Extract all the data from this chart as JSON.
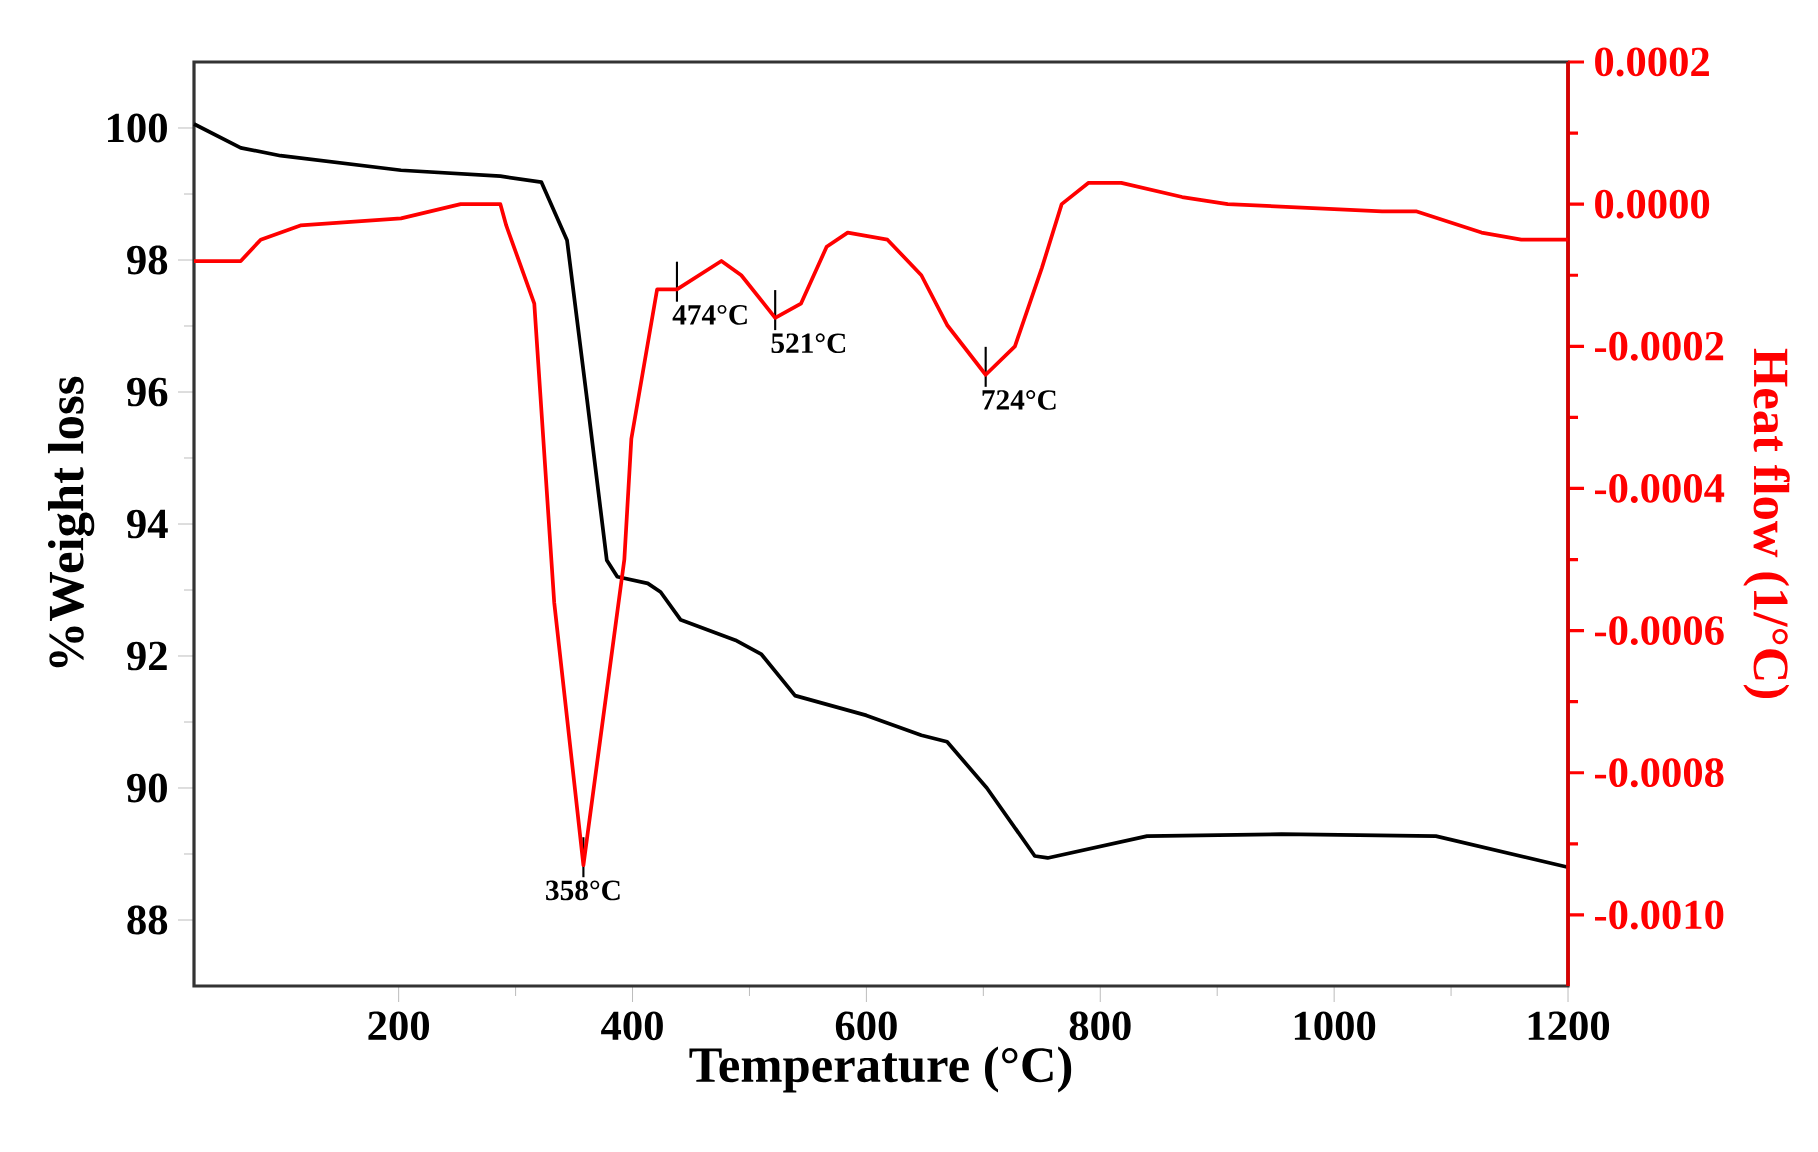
{
  "chart_data": {
    "type": "line",
    "xlabel": "Temperature (°C)",
    "ylabel": "%Weight loss",
    "y2label": "Heat flow (1/°C)",
    "xlim": [
      25,
      1200
    ],
    "xticks": [
      200,
      400,
      600,
      800,
      1000,
      1200
    ],
    "ylim": [
      87,
      101
    ],
    "yticks": [
      88,
      90,
      92,
      94,
      96,
      98,
      100
    ],
    "y2lim": [
      -0.0011,
      0.0002
    ],
    "y2ticks": [
      {
        "value": -0.001,
        "label": "-0.0010"
      },
      {
        "value": -0.0008,
        "label": "-0.0008"
      },
      {
        "value": -0.0006,
        "label": "-0.0006"
      },
      {
        "value": -0.0004,
        "label": "-0.0004"
      },
      {
        "value": -0.0002,
        "label": "-0.0002"
      },
      {
        "value": 0,
        "label": "0.0000"
      },
      0.0002
    ],
    "series": [
      {
        "color": "#000000",
        "x": [
          25,
          65,
          99,
          202,
          287,
          322,
          344,
          361,
          378,
          387,
          413,
          424,
          441,
          488,
          510,
          539,
          600,
          647,
          669,
          703,
          744,
          755,
          840,
          955,
          1087,
          1200
        ],
        "values": [
          100.06,
          99.7,
          99.58,
          99.36,
          99.27,
          99.18,
          98.3,
          95.9,
          93.45,
          93.2,
          93.1,
          92.97,
          92.55,
          92.24,
          92.03,
          91.4,
          91.1,
          90.8,
          90.7,
          90.0,
          88.97,
          88.94,
          89.27,
          89.3,
          89.27,
          88.8
        ]
      },
      {
        "color": "#ff0000",
        "axis": "y2",
        "x": [
          25,
          65,
          82,
          116,
          202,
          253,
          287,
          292,
          316,
          333,
          358,
          393,
          399,
          421,
          438,
          476,
          493,
          522,
          544,
          566,
          584,
          618,
          647,
          669,
          702,
          727,
          750,
          767,
          790,
          818,
          870,
          909,
          1041,
          1070,
          1126,
          1160,
          1200
        ],
        "values": [
          -8e-05,
          -8e-05,
          -5e-05,
          -3e-05,
          -2e-05,
          0,
          0,
          -3e-05,
          -0.00014,
          -0.00056,
          -0.00093,
          -0.0005,
          -0.00033,
          -0.00012,
          -0.00012,
          -8e-05,
          -0.0001,
          -0.00016,
          -0.00014,
          -6e-05,
          -4e-05,
          -5e-05,
          -0.0001,
          -0.00017,
          -0.00024,
          -0.0002,
          -9e-05,
          0,
          3e-05,
          3e-05,
          1e-05,
          0,
          -1e-05,
          -1e-05,
          -4e-05,
          -5e-05,
          -5e-05
        ]
      }
    ],
    "annotations": [
      {
        "text": "358°C",
        "x": 358,
        "y": 88.83
      },
      {
        "text": "474°C",
        "x": 438,
        "y": 97.55
      },
      {
        "text": "521°C",
        "x": 522,
        "y": 97.12
      },
      {
        "text": "724°C",
        "x": 702,
        "y": 96.26
      }
    ]
  }
}
